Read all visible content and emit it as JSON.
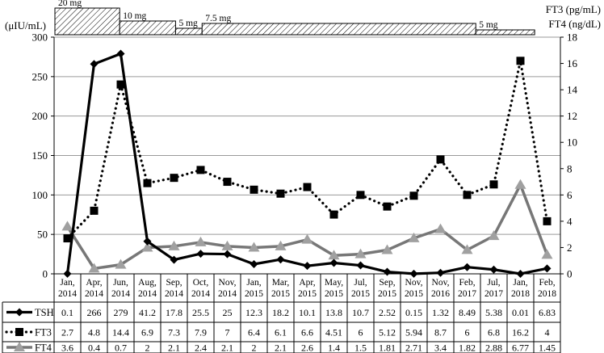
{
  "dose_bar": {
    "segments": [
      {
        "label": "20 mg",
        "months": 2.2
      },
      {
        "label": "10 mg",
        "months": 1.9
      },
      {
        "label": "5 mg",
        "months": 0.9
      },
      {
        "label": "7.5 mg",
        "months": 9.3
      },
      {
        "label": "5 mg",
        "months": 2.0
      }
    ]
  },
  "chart_data": {
    "type": "line",
    "title": "",
    "left_axis": {
      "label": "(μIU/mL)",
      "range": [
        0,
        300
      ],
      "ticks": [
        "0",
        "50",
        "100",
        "150",
        "200",
        "250",
        "300"
      ]
    },
    "right_axis": {
      "label_lines": [
        "FT3 (pg/mL)",
        "FT4 (ng/dL)"
      ],
      "range": [
        0,
        18
      ],
      "ticks": [
        "0",
        "2",
        "4",
        "6",
        "8",
        "10",
        "12",
        "14",
        "16",
        "18"
      ]
    },
    "categories": [
      [
        "Jan,",
        "2014"
      ],
      [
        "Apr,",
        "2014"
      ],
      [
        "Jun,",
        "2014"
      ],
      [
        "Aug,",
        "2014"
      ],
      [
        "Sep,",
        "2014"
      ],
      [
        "Oct,",
        "2014"
      ],
      [
        "Nov,",
        "2014"
      ],
      [
        "Jan,",
        "2015"
      ],
      [
        "Mar,",
        "2015"
      ],
      [
        "Apr,",
        "2015"
      ],
      [
        "May,",
        "2015"
      ],
      [
        "Jul,",
        "2015"
      ],
      [
        "Sep,",
        "2015"
      ],
      [
        "Nov,",
        "2015"
      ],
      [
        "Nov,",
        "2016"
      ],
      [
        "Feb,",
        "2017"
      ],
      [
        "Jul,",
        "2017"
      ],
      [
        "Jan,",
        "2018"
      ],
      [
        "Feb,",
        "2018"
      ]
    ],
    "grid": true,
    "legend": "table-below",
    "series": [
      {
        "name": "TSH",
        "axis": "left",
        "style": "solid",
        "marker": "diamond",
        "color": "#000000",
        "values": [
          0.1,
          266,
          279,
          41.2,
          17.8,
          25.5,
          25,
          12.3,
          18.2,
          10.1,
          13.8,
          10.7,
          2.52,
          0.15,
          1.32,
          8.49,
          5.38,
          0.01,
          6.83
        ],
        "labels": [
          "0.1",
          "266",
          "279",
          "41.2",
          "17.8",
          "25.5",
          "25",
          "12.3",
          "18.2",
          "10.1",
          "13.8",
          "10.7",
          "2.52",
          "0.15",
          "1.32",
          "8.49",
          "5.38",
          "0.01",
          "6.83"
        ]
      },
      {
        "name": "FT3",
        "axis": "right",
        "style": "dotted",
        "marker": "square",
        "color": "#000000",
        "values": [
          2.7,
          4.8,
          14.4,
          6.9,
          7.3,
          7.9,
          7,
          6.4,
          6.1,
          6.6,
          4.51,
          6,
          5.12,
          5.94,
          8.7,
          6,
          6.8,
          16.2,
          4
        ],
        "labels": [
          "2.7",
          "4.8",
          "14.4",
          "6.9",
          "7.3",
          "7.9",
          "7",
          "6.4",
          "6.1",
          "6.6",
          "4.51",
          "6",
          "5.12",
          "5.94",
          "8.7",
          "6",
          "6.8",
          "16.2",
          "4"
        ]
      },
      {
        "name": "FT4",
        "axis": "right",
        "style": "solid-gray",
        "marker": "triangle",
        "color": "#808080",
        "values": [
          3.6,
          0.4,
          0.7,
          2,
          2.1,
          2.4,
          2.1,
          2,
          2.1,
          2.6,
          1.4,
          1.5,
          1.81,
          2.71,
          3.4,
          1.82,
          2.88,
          6.77,
          1.45
        ],
        "labels": [
          "3.6",
          "0.4",
          "0.7",
          "2",
          "2.1",
          "2.4",
          "2.1",
          "2",
          "2.1",
          "2.6",
          "1.4",
          "1.5",
          "1.81",
          "2.71",
          "3.4",
          "1.82",
          "2.88",
          "6.77",
          "1.45"
        ]
      }
    ]
  }
}
